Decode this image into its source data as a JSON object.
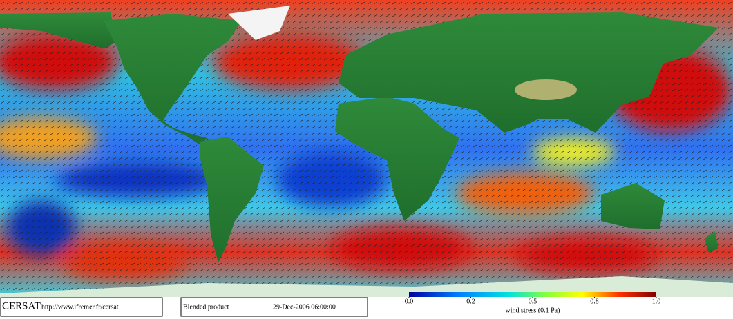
{
  "footer": {
    "logo": "CERSAT",
    "url": "http://www.ifremer.fr/cersat",
    "product": "Blended product",
    "date": "29-Dec-2006 06:00:00"
  },
  "colorbar": {
    "label": "wind stress (0.1 Pa)",
    "ticks": [
      {
        "value": 0,
        "label": "0.0"
      },
      {
        "value": 0.2,
        "label": "0.2"
      },
      {
        "value": 0.5,
        "label": "0.5"
      },
      {
        "value": 0.8,
        "label": "0.8"
      },
      {
        "value": 1,
        "label": "1.0"
      }
    ]
  }
}
